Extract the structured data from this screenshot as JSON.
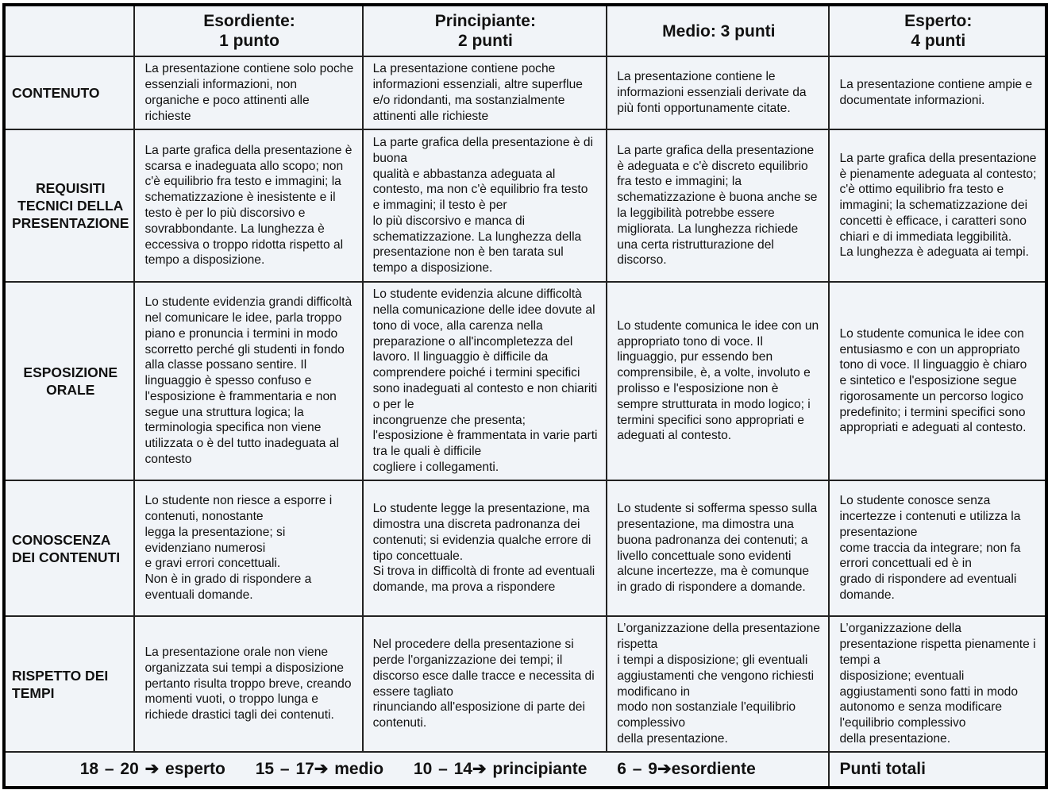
{
  "headers": [
    "",
    "Esordiente:\n1 punto",
    "Principiante:\n2 punti",
    "Medio: 3 punti",
    "Esperto:\n4 punti"
  ],
  "rows": [
    {
      "criterion": "CONTENUTO",
      "centered": false,
      "cells": [
        "La presentazione contiene solo poche essenziali informazioni, non organiche e poco attinenti alle richieste",
        "La presentazione contiene poche informazioni essenziali, altre superflue e/o ridondanti, ma sostanzialmente attinenti alle richieste",
        "La presentazione contiene le informazioni essenziali derivate da più fonti opportunamente citate.",
        "La presentazione contiene ampie e documentate informazioni."
      ]
    },
    {
      "criterion": "REQUISITI TECNICI DELLA PRESENTAZIONE",
      "centered": true,
      "cells": [
        "La parte grafica della presentazione è scarsa e inadeguata allo scopo; non c'è equilibrio fra testo e immagini; la schematizzazione è inesistente e il testo è per lo più discorsivo e sovrabbondante. La lunghezza è eccessiva o troppo ridotta rispetto al tempo a disposizione.",
        "La parte grafica della presentazione è di buona\nqualità e abbastanza adeguata al contesto, ma non c'è equilibrio fra testo e immagini; il testo è per\nlo più discorsivo e manca di schematizzazione. La lunghezza della presentazione non è ben tarata sul tempo a disposizione.",
        "La parte grafica della presentazione è adeguata e c'è discreto equilibrio fra testo e immagini; la schematizzazione è buona anche se la leggibilità potrebbe essere migliorata. La lunghezza richiede una certa ristrutturazione del discorso.",
        "La parte grafica della presentazione è pienamente adeguata al contesto; c'è ottimo equilibrio fra testo e immagini; la schematizzazione dei concetti è efficace, i caratteri sono chiari e di immediata leggibilità.\nLa lunghezza è adeguata ai tempi."
      ]
    },
    {
      "criterion": "ESPOSIZIONE ORALE",
      "centered": true,
      "cells": [
        "Lo studente evidenzia grandi difficoltà nel comunicare le idee, parla troppo piano e pronuncia i termini in modo scorretto perché gli studenti in fondo alla classe possano sentire. Il linguaggio è spesso confuso e l'esposizione è frammentaria e non segue una struttura logica; la terminologia specifica non viene utilizzata o è del tutto inadeguata al contesto",
        "Lo studente evidenzia alcune difficoltà nella comunicazione delle idee dovute al tono di voce, alla carenza nella preparazione o all'incompletezza del lavoro. Il linguaggio è difficile da comprendere poiché i termini specifici sono inadeguati al contesto e non chiariti o per le\nincongruenze che presenta; l'esposizione è frammentata in varie parti tra le quali è difficile\ncogliere i collegamenti.",
        "Lo studente comunica le idee con un appropriato tono di voce. Il linguaggio, pur essendo ben comprensibile, è, a volte, involuto e prolisso e l'esposizione non è sempre strutturata in modo logico; i termini specifici sono appropriati e adeguati al contesto.",
        "Lo studente comunica le idee con entusiasmo e con un appropriato tono di voce. Il linguaggio è chiaro e sintetico e l'esposizione segue rigorosamente un percorso logico predefinito; i termini specifici sono appropriati e adeguati al contesto."
      ]
    },
    {
      "criterion": "CONOSCENZA DEI CONTENUTI",
      "centered": false,
      "cells": [
        "Lo studente non riesce a esporre i contenuti, nonostante\nlegga la presentazione; si evidenziano numerosi\ne gravi errori concettuali.\nNon è in grado di rispondere a eventuali domande.",
        "Lo studente legge la presentazione, ma dimostra una discreta padronanza dei contenuti; si evidenzia qualche errore di tipo concettuale.\nSi trova in difficoltà di fronte ad eventuali domande, ma prova a rispondere",
        "Lo studente si sofferma spesso sulla presentazione, ma dimostra una buona padronanza dei contenuti; a livello concettuale sono evidenti alcune incertezze, ma è comunque in grado di rispondere a domande.",
        "Lo studente conosce senza incertezze i contenuti e utilizza la presentazione\ncome traccia da integrare; non fa errori concettuali ed è in\ngrado di rispondere ad eventuali domande."
      ]
    },
    {
      "criterion": "RISPETTO DEI TEMPI",
      "centered": false,
      "cells": [
        "La presentazione orale non viene organizzata sui tempi a disposizione pertanto risulta troppo breve, creando momenti vuoti, o troppo lunga e richiede drastici tagli dei contenuti.",
        "Nel procedere della presentazione si perde l'organizzazione dei tempi; il discorso esce dalle tracce e necessita di essere tagliato\nrinunciando all'esposizione di parte dei contenuti.",
        "L’organizzazione della presentazione rispetta\ni tempi a disposizione; gli eventuali aggiustamenti che vengono richiesti  modificano in\nmodo non sostanziale l'equilibrio complessivo\ndella presentazione.",
        "L’organizzazione della presentazione rispetta pienamente i tempi a\ndisposizione; eventuali aggiustamenti sono fatti in modo autonomo e senza modificare l'equilibrio complessivo\ndella presentazione."
      ]
    }
  ],
  "footer": {
    "scale": [
      "18 – 20 ➔ esperto",
      "15 – 17➔ medio",
      "10 – 14➔ principiante",
      "6 – 9➔esordiente"
    ],
    "total_label": "Punti totali"
  }
}
